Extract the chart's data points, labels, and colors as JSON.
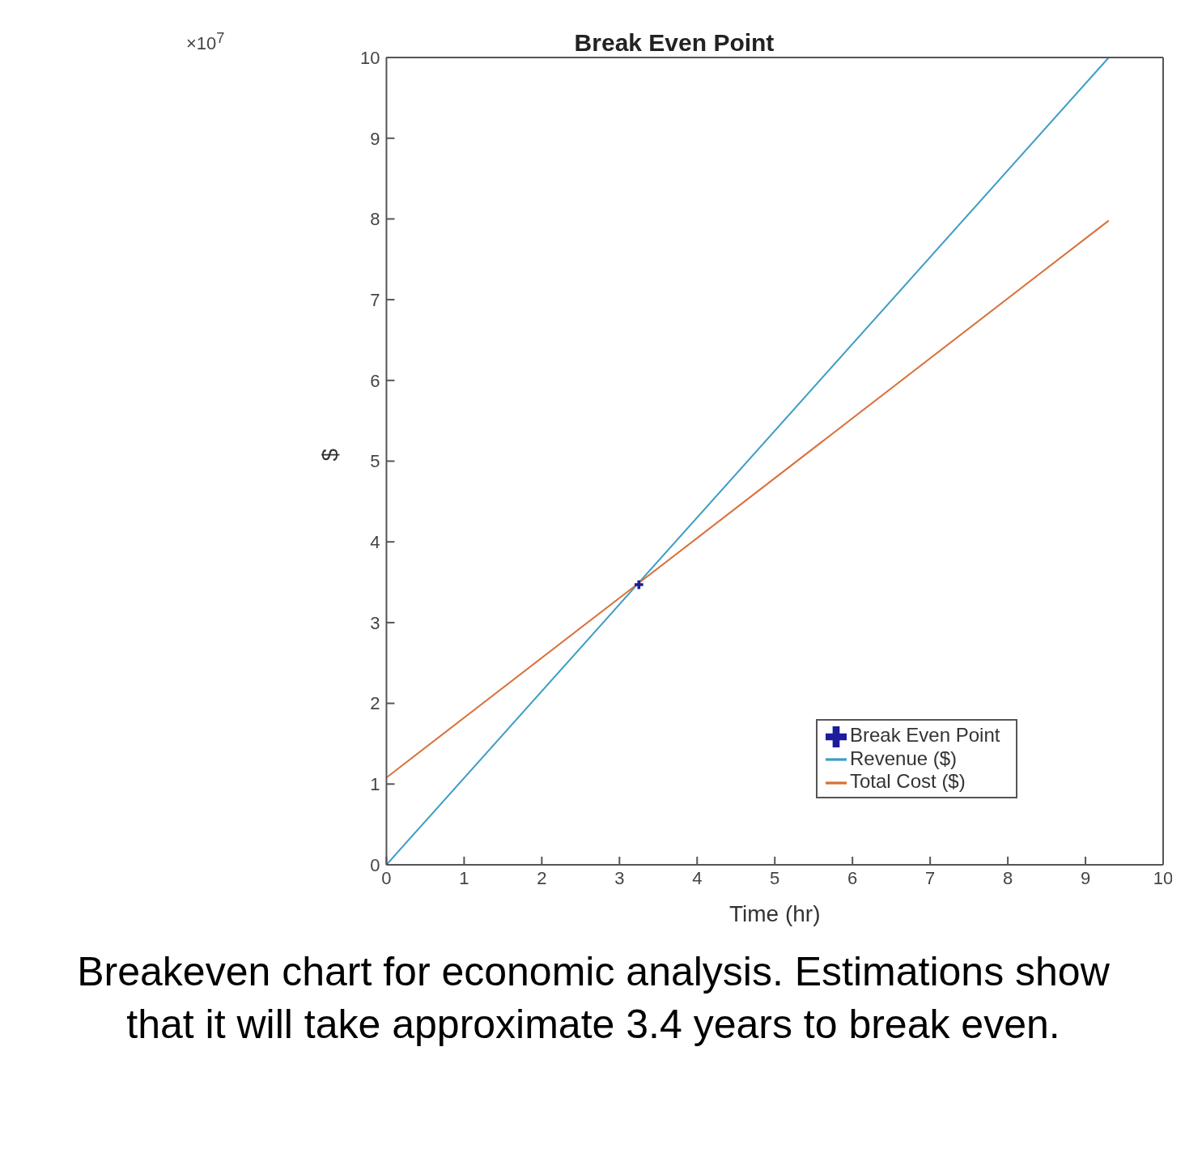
{
  "chart_data": {
    "type": "line",
    "title": "Break Even Point",
    "xlabel": "Time (hr)",
    "ylabel": "$",
    "xlim": [
      0,
      10
    ],
    "xticks": [
      0,
      1,
      2,
      3,
      4,
      5,
      6,
      7,
      8,
      9,
      10
    ],
    "ylim": [
      0,
      10
    ],
    "yticks": [
      0,
      1,
      2,
      3,
      4,
      5,
      6,
      7,
      8,
      9,
      10
    ],
    "legend": "bottom right",
    "line_style": "solid",
    "series": [
      {
        "name": "Revenue ($)",
        "color": "#3d9dc4",
        "x": [
          0,
          9.3
        ],
        "values": [
          0,
          10
        ],
        "marker": "none"
      },
      {
        "name": "Total Cost ($)",
        "color": "#d9703a",
        "x": [
          0,
          9.3
        ],
        "values": [
          1.08,
          7.98
        ],
        "marker": "none"
      },
      {
        "name": "Break Even Point",
        "type": "scatter",
        "color": "#1c1c9c",
        "x": [
          3.25
        ],
        "values": [
          3.47
        ],
        "marker": "cross"
      }
    ],
    "annotations": [
      "×10$^{7}$",
      "Breakeven chart for economic analysis. Estimations show that it will take approximate 3.4 years to break even."
    ]
  }
}
